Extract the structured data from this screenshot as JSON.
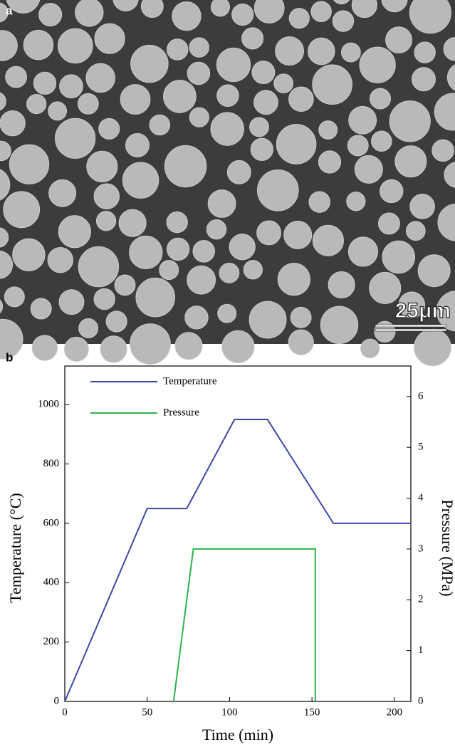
{
  "panel_a": {
    "label": "a",
    "scale_bar": "25μm"
  },
  "chart_data": {
    "type": "line",
    "panel_label": "b",
    "xlabel": "Time (min)",
    "ylabel": "Temperature (°C)",
    "y2label": "Pressure (MPa)",
    "xlim": [
      0,
      210
    ],
    "xticks": [
      0,
      50,
      100,
      150,
      200
    ],
    "ylim": [
      0,
      1130
    ],
    "yticks": [
      0,
      200,
      400,
      600,
      800,
      1000
    ],
    "y2lim": [
      0,
      6.6
    ],
    "y2ticks": [
      0,
      1,
      2,
      3,
      4,
      5,
      6
    ],
    "legend": "upper left",
    "series": [
      {
        "name": "Temperature",
        "color": "#3a4aa8",
        "x": [
          0,
          50,
          74,
          103,
          123,
          163,
          210
        ],
        "values": [
          0,
          650,
          650,
          950,
          950,
          600,
          600
        ]
      },
      {
        "name": "Pressure",
        "color": "#2db34a",
        "axis": "y2",
        "x": [
          66,
          78,
          152,
          152
        ],
        "values": [
          0,
          3,
          3,
          0
        ]
      }
    ]
  }
}
